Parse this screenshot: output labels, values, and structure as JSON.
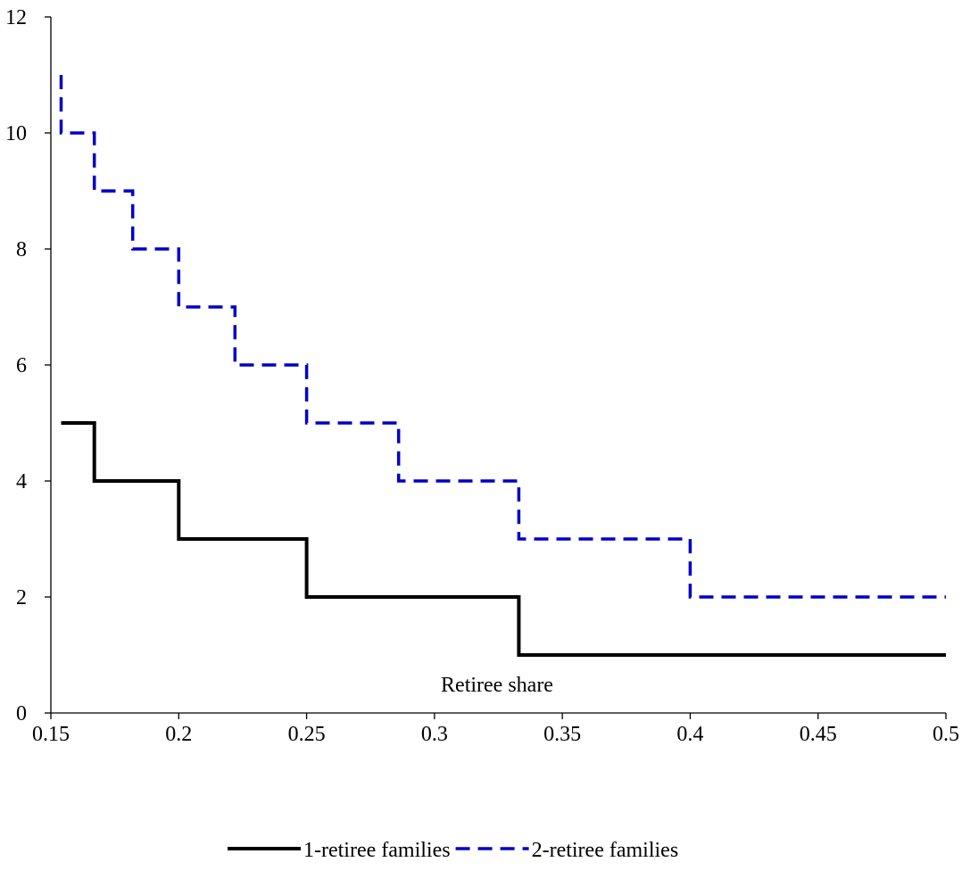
{
  "chart_data": {
    "type": "line",
    "step": true,
    "title": "",
    "xlabel": "Retiree share",
    "ylabel": "",
    "xlim": [
      0.15,
      0.5
    ],
    "ylim": [
      0,
      12
    ],
    "x_ticks": [
      0.15,
      0.2,
      0.25,
      0.3,
      0.35,
      0.4,
      0.45,
      0.5
    ],
    "x_tick_labels": [
      "0.15",
      "0.2",
      "0.25",
      "0.3",
      "0.35",
      "0.4",
      "0.45",
      "0.5"
    ],
    "y_ticks": [
      0,
      2,
      4,
      6,
      8,
      10,
      12
    ],
    "y_tick_labels": [
      "0",
      "2",
      "4",
      "6",
      "8",
      "10",
      "12"
    ],
    "grid": false,
    "legend_position": "bottom",
    "series": [
      {
        "name": "1-retiree families",
        "color": "#000000",
        "style": "solid",
        "points": [
          [
            0.154,
            5
          ],
          [
            0.167,
            5
          ],
          [
            0.167,
            4
          ],
          [
            0.2,
            4
          ],
          [
            0.2,
            3
          ],
          [
            0.25,
            3
          ],
          [
            0.25,
            2
          ],
          [
            0.333,
            2
          ],
          [
            0.333,
            1
          ],
          [
            0.5,
            1
          ]
        ]
      },
      {
        "name": "2-retiree families",
        "color": "#0000cc",
        "style": "dashed",
        "points": [
          [
            0.154,
            11
          ],
          [
            0.154,
            10
          ],
          [
            0.167,
            10
          ],
          [
            0.167,
            9
          ],
          [
            0.182,
            9
          ],
          [
            0.182,
            8
          ],
          [
            0.2,
            8
          ],
          [
            0.2,
            7
          ],
          [
            0.222,
            7
          ],
          [
            0.222,
            6
          ],
          [
            0.25,
            6
          ],
          [
            0.25,
            5
          ],
          [
            0.286,
            5
          ],
          [
            0.286,
            4
          ],
          [
            0.333,
            4
          ],
          [
            0.333,
            3
          ],
          [
            0.4,
            3
          ],
          [
            0.4,
            2
          ],
          [
            0.5,
            2
          ]
        ]
      }
    ]
  }
}
